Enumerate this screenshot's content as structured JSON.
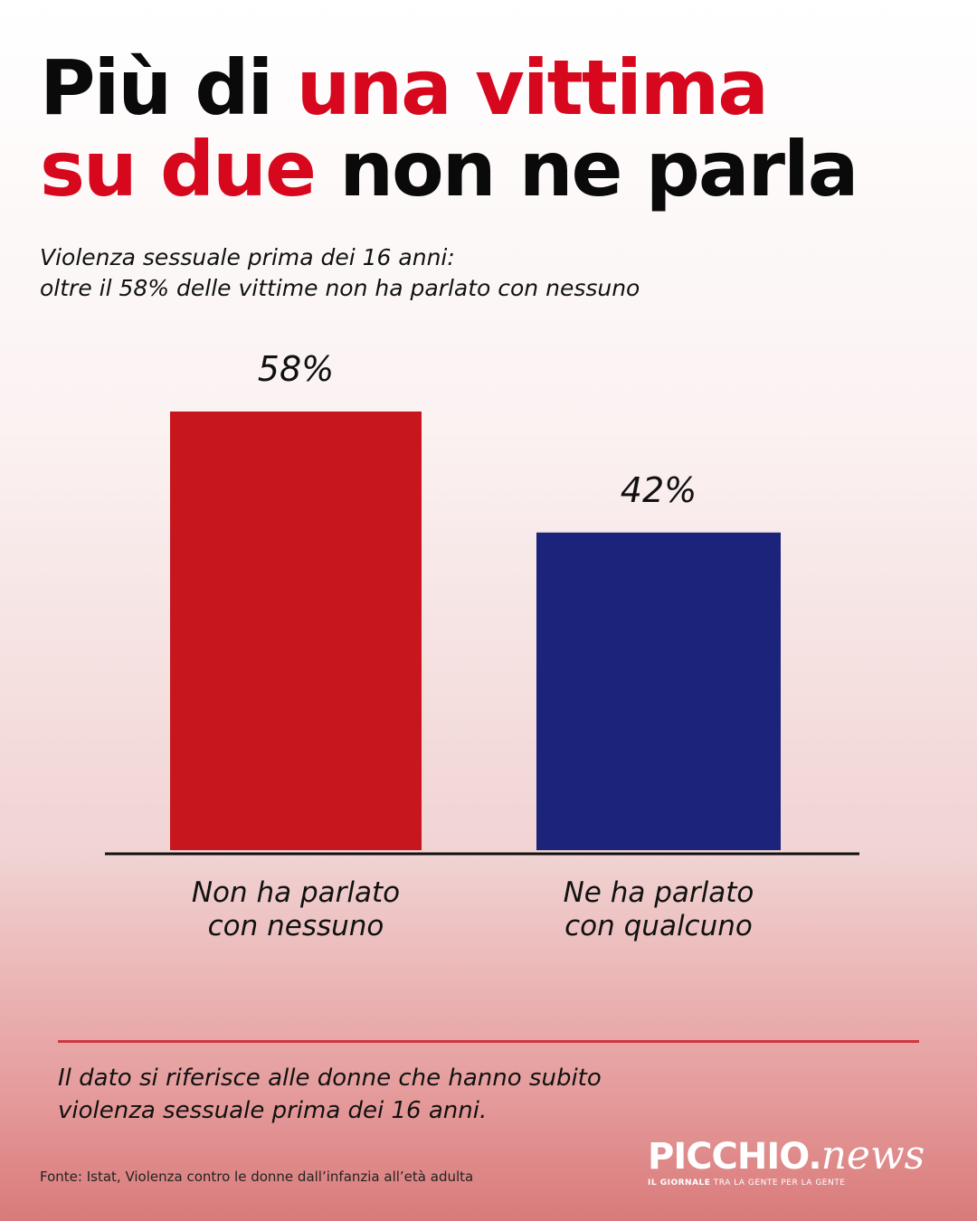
{
  "header": {
    "title_part1": "Più di ",
    "title_part2": "una vittima",
    "title_part3": "su due",
    "title_part4": " non ne parla",
    "subtitle_line1": "Violenza sessuale prima dei 16 anni:",
    "subtitle_line2": "oltre il 58% delle vittime non ha parlato con nessuno"
  },
  "chart_data": {
    "type": "bar",
    "categories": [
      [
        "Non ha parlato",
        "con nessuno"
      ],
      [
        "Ne ha parlato",
        "con qualcuno"
      ]
    ],
    "values": [
      58,
      42
    ],
    "data_labels": [
      "58%",
      "42%"
    ],
    "colors": [
      "#c8161e",
      "#1b237b"
    ],
    "ylim": [
      0,
      58
    ],
    "grid": false,
    "legend": "none"
  },
  "footer": {
    "note_line1": "Il dato si riferisce alle donne che hanno subito",
    "note_line2": "violenza sessuale prima dei 16 anni.",
    "source": "Fonte: Istat, Violenza contro le donne dall’infanzia all’età adulta"
  },
  "logo": {
    "brand": "PICCHIO.",
    "brand_suffix": "news",
    "tagline_bold": "IL GIORNALE",
    "tagline_rest": " TRA LA GENTE PER LA GENTE"
  }
}
